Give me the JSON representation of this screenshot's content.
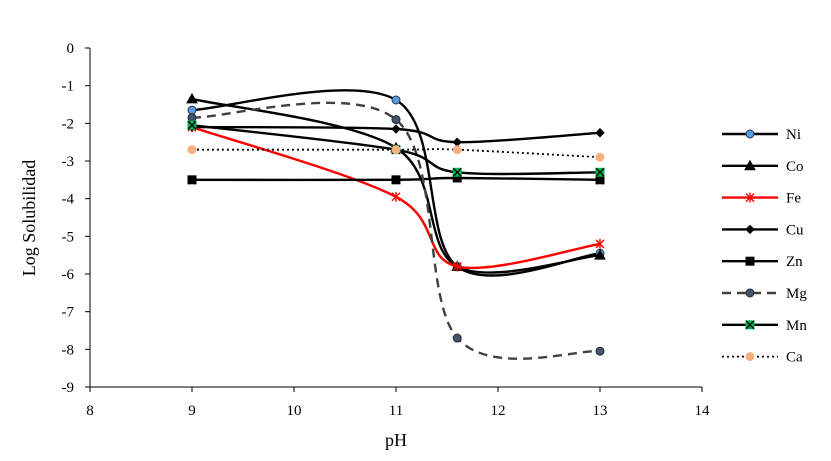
{
  "chart_data": {
    "type": "line",
    "title": "",
    "xlabel": "pH",
    "ylabel": "Log Solubilidad",
    "xlim": [
      8,
      14
    ],
    "ylim": [
      -9,
      0
    ],
    "xticks": [
      "8",
      "10",
      "12",
      "14"
    ],
    "xticks_values": [
      8,
      9,
      10,
      11,
      12,
      13,
      14
    ],
    "xtick_labels": [
      "8",
      "9",
      "10",
      "11",
      "12",
      "13",
      "14"
    ],
    "yticks_values": [
      0,
      -1,
      -2,
      -3,
      -4,
      -5,
      -6,
      -7,
      -8,
      -9
    ],
    "ytick_labels": [
      "0",
      "-1",
      "-2",
      "-3",
      "-4",
      "-5",
      "-6",
      "-7",
      "-8",
      "-9"
    ],
    "grid": false,
    "legend_position": "right",
    "series": [
      {
        "name": "Ni",
        "x": [
          9,
          11,
          11.6,
          13
        ],
        "y": [
          -1.65,
          -1.38,
          -5.8,
          -5.45
        ],
        "color": "#000000",
        "line": "solid",
        "marker": "circle",
        "marker_fill": "#5b9bd5",
        "marker_stroke": "#1f3864"
      },
      {
        "name": "Co",
        "x": [
          9,
          11,
          11.6,
          13
        ],
        "y": [
          -1.35,
          -2.65,
          -5.8,
          -5.5
        ],
        "color": "#000000",
        "line": "solid",
        "marker": "triangle",
        "marker_fill": "#000000",
        "marker_stroke": "#000000"
      },
      {
        "name": "Fe",
        "x": [
          9,
          11,
          11.6,
          13
        ],
        "y": [
          -2.1,
          -3.95,
          -5.8,
          -5.2
        ],
        "color": "#ff0000",
        "line": "solid",
        "marker": "asterisk",
        "marker_fill": "#ff0000",
        "marker_stroke": "#ff0000"
      },
      {
        "name": "Cu",
        "x": [
          9,
          11,
          11.6,
          13
        ],
        "y": [
          -2.1,
          -2.15,
          -2.5,
          -2.25
        ],
        "color": "#000000",
        "line": "solid",
        "marker": "diamond",
        "marker_fill": "#000000",
        "marker_stroke": "#000000"
      },
      {
        "name": "Zn",
        "x": [
          9,
          11,
          11.6,
          13
        ],
        "y": [
          -3.5,
          -3.5,
          -3.45,
          -3.5
        ],
        "color": "#000000",
        "line": "solid",
        "marker": "square",
        "marker_fill": "#000000",
        "marker_stroke": "#000000"
      },
      {
        "name": "Mg",
        "x": [
          9,
          11,
          11.6,
          13
        ],
        "y": [
          -1.85,
          -1.9,
          -7.7,
          -8.05
        ],
        "color": "#404040",
        "line": "dashed",
        "marker": "circle",
        "marker_fill": "#44546a",
        "marker_stroke": "#222a35"
      },
      {
        "name": "Mn",
        "x": [
          9,
          11,
          11.6,
          13
        ],
        "y": [
          -2.05,
          -2.7,
          -3.3,
          -3.3
        ],
        "color": "#000000",
        "line": "solid",
        "marker": "xsquare",
        "marker_fill": "#00b050",
        "marker_stroke": "#000000"
      },
      {
        "name": "Ca",
        "x": [
          9,
          11,
          11.6,
          13
        ],
        "y": [
          -2.7,
          -2.7,
          -2.7,
          -2.9
        ],
        "color": "#000000",
        "line": "dotted",
        "marker": "circle",
        "marker_fill": "#f4b183",
        "marker_stroke": "#f4b183"
      }
    ]
  }
}
